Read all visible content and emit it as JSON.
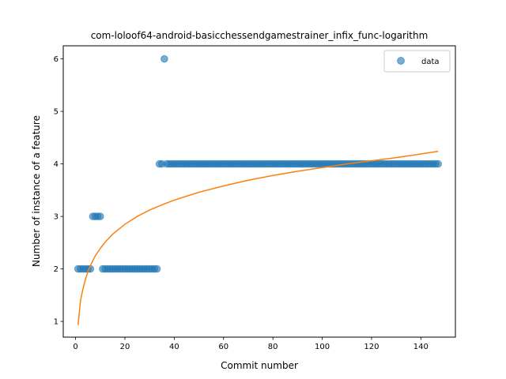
{
  "chart_data": {
    "type": "scatter",
    "title": "com-loloof64-android-basicchessendgamestrainer_infix_func-logarithm",
    "xlabel": "Commit number",
    "ylabel": "Number of instance of a feature",
    "xlim": [
      -5,
      154
    ],
    "ylim": [
      0.7,
      6.25
    ],
    "xticks": [
      0,
      20,
      40,
      60,
      80,
      100,
      120,
      140
    ],
    "yticks": [
      1,
      2,
      3,
      4,
      5,
      6
    ],
    "grid": false,
    "legend_placement": "top-right",
    "series": [
      {
        "name": "data",
        "kind": "scatter",
        "color": "#1f77b4",
        "points": [
          [
            1,
            2
          ],
          [
            2,
            2
          ],
          [
            3,
            2
          ],
          [
            4,
            2
          ],
          [
            5,
            2
          ],
          [
            6,
            2
          ],
          [
            7,
            3
          ],
          [
            8,
            3
          ],
          [
            9,
            3
          ],
          [
            10,
            3
          ],
          [
            11,
            2
          ],
          [
            12,
            2
          ],
          [
            13,
            2
          ],
          [
            14,
            2
          ],
          [
            15,
            2
          ],
          [
            16,
            2
          ],
          [
            17,
            2
          ],
          [
            18,
            2
          ],
          [
            19,
            2
          ],
          [
            20,
            2
          ],
          [
            21,
            2
          ],
          [
            22,
            2
          ],
          [
            23,
            2
          ],
          [
            24,
            2
          ],
          [
            25,
            2
          ],
          [
            26,
            2
          ],
          [
            27,
            2
          ],
          [
            28,
            2
          ],
          [
            29,
            2
          ],
          [
            30,
            2
          ],
          [
            31,
            2
          ],
          [
            32,
            2
          ],
          [
            33,
            2
          ],
          [
            34,
            4
          ],
          [
            35,
            4
          ],
          [
            36,
            6
          ],
          [
            37,
            4
          ],
          [
            38,
            4
          ],
          [
            39,
            4
          ],
          [
            40,
            4
          ],
          [
            41,
            4
          ],
          [
            42,
            4
          ],
          [
            43,
            4
          ],
          [
            44,
            4
          ],
          [
            45,
            4
          ],
          [
            46,
            4
          ],
          [
            47,
            4
          ],
          [
            48,
            4
          ],
          [
            49,
            4
          ],
          [
            50,
            4
          ],
          [
            51,
            4
          ],
          [
            52,
            4
          ],
          [
            53,
            4
          ],
          [
            54,
            4
          ],
          [
            55,
            4
          ],
          [
            56,
            4
          ],
          [
            57,
            4
          ],
          [
            58,
            4
          ],
          [
            59,
            4
          ],
          [
            60,
            4
          ],
          [
            61,
            4
          ],
          [
            62,
            4
          ],
          [
            63,
            4
          ],
          [
            64,
            4
          ],
          [
            65,
            4
          ],
          [
            66,
            4
          ],
          [
            67,
            4
          ],
          [
            68,
            4
          ],
          [
            69,
            4
          ],
          [
            70,
            4
          ],
          [
            71,
            4
          ],
          [
            72,
            4
          ],
          [
            73,
            4
          ],
          [
            74,
            4
          ],
          [
            75,
            4
          ],
          [
            76,
            4
          ],
          [
            77,
            4
          ],
          [
            78,
            4
          ],
          [
            79,
            4
          ],
          [
            80,
            4
          ],
          [
            81,
            4
          ],
          [
            82,
            4
          ],
          [
            83,
            4
          ],
          [
            84,
            4
          ],
          [
            85,
            4
          ],
          [
            86,
            4
          ],
          [
            87,
            4
          ],
          [
            88,
            4
          ],
          [
            89,
            4
          ],
          [
            90,
            4
          ],
          [
            91,
            4
          ],
          [
            92,
            4
          ],
          [
            93,
            4
          ],
          [
            94,
            4
          ],
          [
            95,
            4
          ],
          [
            96,
            4
          ],
          [
            97,
            4
          ],
          [
            98,
            4
          ],
          [
            99,
            4
          ],
          [
            100,
            4
          ],
          [
            101,
            4
          ],
          [
            102,
            4
          ],
          [
            103,
            4
          ],
          [
            104,
            4
          ],
          [
            105,
            4
          ],
          [
            106,
            4
          ],
          [
            107,
            4
          ],
          [
            108,
            4
          ],
          [
            109,
            4
          ],
          [
            110,
            4
          ],
          [
            111,
            4
          ],
          [
            112,
            4
          ],
          [
            113,
            4
          ],
          [
            114,
            4
          ],
          [
            115,
            4
          ],
          [
            116,
            4
          ],
          [
            117,
            4
          ],
          [
            118,
            4
          ],
          [
            119,
            4
          ],
          [
            120,
            4
          ],
          [
            121,
            4
          ],
          [
            122,
            4
          ],
          [
            123,
            4
          ],
          [
            124,
            4
          ],
          [
            125,
            4
          ],
          [
            126,
            4
          ],
          [
            127,
            4
          ],
          [
            128,
            4
          ],
          [
            129,
            4
          ],
          [
            130,
            4
          ],
          [
            131,
            4
          ],
          [
            132,
            4
          ],
          [
            133,
            4
          ],
          [
            134,
            4
          ],
          [
            135,
            4
          ],
          [
            136,
            4
          ],
          [
            137,
            4
          ],
          [
            138,
            4
          ],
          [
            139,
            4
          ],
          [
            140,
            4
          ],
          [
            141,
            4
          ],
          [
            142,
            4
          ],
          [
            143,
            4
          ],
          [
            144,
            4
          ],
          [
            145,
            4
          ],
          [
            146,
            4
          ],
          [
            147,
            4
          ]
        ]
      },
      {
        "kind": "line",
        "color": "#ff7f0e",
        "points": [
          [
            1,
            0.93
          ],
          [
            2,
            1.4
          ],
          [
            3,
            1.62
          ],
          [
            4,
            1.8
          ],
          [
            5,
            1.95
          ],
          [
            6,
            2.06
          ],
          [
            7,
            2.16
          ],
          [
            8,
            2.25
          ],
          [
            10,
            2.39
          ],
          [
            12,
            2.51
          ],
          [
            15,
            2.66
          ],
          [
            20,
            2.85
          ],
          [
            25,
            3.0
          ],
          [
            30,
            3.12
          ],
          [
            35,
            3.22
          ],
          [
            40,
            3.31
          ],
          [
            50,
            3.46
          ],
          [
            60,
            3.58
          ],
          [
            70,
            3.69
          ],
          [
            80,
            3.78
          ],
          [
            90,
            3.86
          ],
          [
            100,
            3.93
          ],
          [
            110,
            4.0
          ],
          [
            120,
            4.06
          ],
          [
            130,
            4.12
          ],
          [
            140,
            4.19
          ],
          [
            147,
            4.24
          ]
        ]
      }
    ]
  }
}
